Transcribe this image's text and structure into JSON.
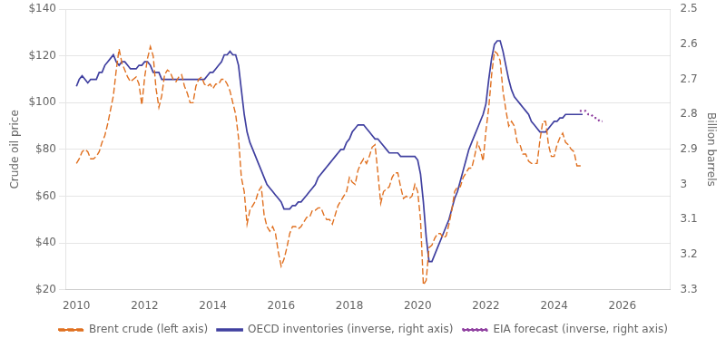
{
  "chart_data": {
    "type": "line",
    "ylabel": "Crude oil price",
    "y2label": "Billion barrels",
    "xlim": [
      2009.7,
      2027.4
    ],
    "xticks": [
      2010,
      2012,
      2014,
      2016,
      2018,
      2020,
      2022,
      2024,
      2026
    ],
    "ylim": [
      20,
      140
    ],
    "yticks": [
      {
        "value": 20,
        "label": "$20"
      },
      {
        "value": 40,
        "label": "$40"
      },
      {
        "value": 60,
        "label": "$60"
      },
      {
        "value": 80,
        "label": "$80"
      },
      {
        "value": 100,
        "label": "$100"
      },
      {
        "value": 120,
        "label": "$120"
      },
      {
        "value": 140,
        "label": "$140"
      }
    ],
    "y2lim": [
      3.3,
      2.5
    ],
    "y2ticks": [
      2.5,
      2.6,
      2.7,
      2.8,
      2.9,
      3,
      3.1,
      3.2,
      3.3
    ],
    "grid": "y",
    "legend": "bottom",
    "series": [
      {
        "name": "Brent crude (left axis)",
        "color": "#E07020",
        "line_style": "dashed",
        "x": [
          2010.0,
          2010.083,
          2010.167,
          2010.25,
          2010.333,
          2010.417,
          2010.5,
          2010.583,
          2010.667,
          2010.75,
          2010.833,
          2010.917,
          2011.0,
          2011.083,
          2011.167,
          2011.25,
          2011.333,
          2011.417,
          2011.5,
          2011.583,
          2011.667,
          2011.75,
          2011.833,
          2011.917,
          2012.0,
          2012.083,
          2012.167,
          2012.25,
          2012.333,
          2012.417,
          2012.5,
          2012.583,
          2012.667,
          2012.75,
          2012.833,
          2012.917,
          2013.0,
          2013.083,
          2013.167,
          2013.25,
          2013.333,
          2013.417,
          2013.5,
          2013.583,
          2013.667,
          2013.75,
          2013.833,
          2013.917,
          2014.0,
          2014.083,
          2014.167,
          2014.25,
          2014.333,
          2014.417,
          2014.5,
          2014.583,
          2014.667,
          2014.75,
          2014.833,
          2014.917,
          2015.0,
          2015.083,
          2015.167,
          2015.25,
          2015.333,
          2015.417,
          2015.5,
          2015.583,
          2015.667,
          2015.75,
          2015.833,
          2015.917,
          2016.0,
          2016.083,
          2016.167,
          2016.25,
          2016.333,
          2016.417,
          2016.5,
          2016.583,
          2016.667,
          2016.75,
          2016.833,
          2016.917,
          2017.0,
          2017.083,
          2017.167,
          2017.25,
          2017.333,
          2017.417,
          2017.5,
          2017.583,
          2017.667,
          2017.75,
          2017.833,
          2017.917,
          2018.0,
          2018.083,
          2018.167,
          2018.25,
          2018.333,
          2018.417,
          2018.5,
          2018.583,
          2018.667,
          2018.75,
          2018.833,
          2018.917,
          2019.0,
          2019.083,
          2019.167,
          2019.25,
          2019.333,
          2019.417,
          2019.5,
          2019.583,
          2019.667,
          2019.75,
          2019.833,
          2019.917,
          2020.0,
          2020.083,
          2020.167,
          2020.25,
          2020.333,
          2020.417,
          2020.5,
          2020.583,
          2020.667,
          2020.75,
          2020.833,
          2020.917,
          2021.0,
          2021.083,
          2021.167,
          2021.25,
          2021.333,
          2021.417,
          2021.5,
          2021.583,
          2021.667,
          2021.75,
          2021.833,
          2021.917,
          2022.0,
          2022.083,
          2022.167,
          2022.25,
          2022.333,
          2022.417,
          2022.5,
          2022.583,
          2022.667,
          2022.75,
          2022.833,
          2022.917,
          2023.0,
          2023.083,
          2023.167,
          2023.25,
          2023.333,
          2023.417,
          2023.5,
          2023.583,
          2023.667,
          2023.75,
          2023.833,
          2023.917,
          2024.0,
          2024.083,
          2024.167,
          2024.25,
          2024.333,
          2024.417,
          2024.5,
          2024.583,
          2024.667,
          2024.75,
          2024.833
        ],
        "values": [
          74,
          76,
          79,
          80,
          79,
          76,
          76,
          77,
          79,
          83,
          86,
          91,
          97,
          103,
          114,
          123,
          117,
          114,
          111,
          109,
          110,
          111,
          108,
          99,
          111,
          119,
          124,
          120,
          106,
          98,
          103,
          112,
          114,
          113,
          110,
          109,
          111,
          112,
          107,
          104,
          100,
          100,
          107,
          110,
          111,
          108,
          107,
          108,
          106,
          108,
          108,
          110,
          110,
          108,
          105,
          100,
          95,
          85,
          68,
          62,
          48,
          54,
          56,
          58,
          62,
          64,
          52,
          47,
          45,
          47,
          44,
          36,
          30,
          33,
          38,
          44,
          47,
          47,
          46,
          47,
          49,
          51,
          51,
          54,
          54,
          55,
          55,
          52,
          50,
          50,
          48,
          52,
          56,
          58,
          60,
          62,
          68,
          66,
          65,
          71,
          74,
          76,
          74,
          77,
          81,
          82,
          70,
          57,
          62,
          63,
          64,
          68,
          70,
          70,
          64,
          59,
          60,
          59,
          60,
          65,
          62,
          50,
          22,
          24,
          38,
          39,
          42,
          44,
          44,
          42,
          43,
          48,
          54,
          62,
          64,
          64,
          68,
          70,
          72,
          72,
          77,
          83,
          80,
          75,
          88,
          98,
          112,
          122,
          121,
          118,
          105,
          97,
          90,
          92,
          90,
          83,
          82,
          78,
          78,
          75,
          74,
          74,
          74,
          84,
          92,
          92,
          82,
          77,
          77,
          82,
          85,
          87,
          83,
          82,
          80,
          79,
          73,
          73,
          73
        ]
      },
      {
        "name": "OECD inventories (inverse, right axis)",
        "color": "#4040A0",
        "line_style": "solid",
        "axis": "y2",
        "x": [
          2010.0,
          2010.083,
          2010.167,
          2010.25,
          2010.333,
          2010.417,
          2010.5,
          2010.583,
          2010.667,
          2010.75,
          2010.833,
          2010.917,
          2011.0,
          2011.083,
          2011.167,
          2011.25,
          2011.333,
          2011.417,
          2011.5,
          2011.583,
          2011.667,
          2011.75,
          2011.833,
          2011.917,
          2012.0,
          2012.083,
          2012.167,
          2012.25,
          2012.333,
          2012.417,
          2012.5,
          2012.583,
          2012.667,
          2012.75,
          2012.833,
          2012.917,
          2013.0,
          2013.083,
          2013.167,
          2013.25,
          2013.333,
          2013.417,
          2013.5,
          2013.583,
          2013.667,
          2013.75,
          2013.833,
          2013.917,
          2014.0,
          2014.083,
          2014.167,
          2014.25,
          2014.333,
          2014.417,
          2014.5,
          2014.583,
          2014.667,
          2014.75,
          2014.833,
          2014.917,
          2015.0,
          2015.083,
          2015.167,
          2015.25,
          2015.333,
          2015.417,
          2015.5,
          2015.583,
          2015.667,
          2015.75,
          2015.833,
          2015.917,
          2016.0,
          2016.083,
          2016.167,
          2016.25,
          2016.333,
          2016.417,
          2016.5,
          2016.583,
          2016.667,
          2016.75,
          2016.833,
          2016.917,
          2017.0,
          2017.083,
          2017.167,
          2017.25,
          2017.333,
          2017.417,
          2017.5,
          2017.583,
          2017.667,
          2017.75,
          2017.833,
          2017.917,
          2018.0,
          2018.083,
          2018.167,
          2018.25,
          2018.333,
          2018.417,
          2018.5,
          2018.583,
          2018.667,
          2018.75,
          2018.833,
          2018.917,
          2019.0,
          2019.083,
          2019.167,
          2019.25,
          2019.333,
          2019.417,
          2019.5,
          2019.583,
          2019.667,
          2019.75,
          2019.833,
          2019.917,
          2020.0,
          2020.083,
          2020.167,
          2020.25,
          2020.333,
          2020.417,
          2020.5,
          2020.583,
          2020.667,
          2020.75,
          2020.833,
          2020.917,
          2021.0,
          2021.083,
          2021.167,
          2021.25,
          2021.333,
          2021.417,
          2021.5,
          2021.583,
          2021.667,
          2021.75,
          2021.833,
          2021.917,
          2022.0,
          2022.083,
          2022.167,
          2022.25,
          2022.333,
          2022.417,
          2022.5,
          2022.583,
          2022.667,
          2022.75,
          2022.833,
          2022.917,
          2023.0,
          2023.083,
          2023.167,
          2023.25,
          2023.333,
          2023.417,
          2023.5,
          2023.583,
          2023.667,
          2023.75,
          2023.833,
          2023.917,
          2024.0,
          2024.083,
          2024.167,
          2024.25,
          2024.333,
          2024.417,
          2024.5,
          2024.583,
          2024.667,
          2024.75,
          2024.833
        ],
        "values": [
          2.72,
          2.7,
          2.69,
          2.7,
          2.71,
          2.7,
          2.7,
          2.7,
          2.68,
          2.68,
          2.66,
          2.65,
          2.64,
          2.63,
          2.65,
          2.66,
          2.65,
          2.65,
          2.66,
          2.67,
          2.67,
          2.67,
          2.66,
          2.66,
          2.65,
          2.65,
          2.66,
          2.68,
          2.68,
          2.68,
          2.7,
          2.7,
          2.7,
          2.7,
          2.7,
          2.7,
          2.7,
          2.7,
          2.7,
          2.7,
          2.7,
          2.7,
          2.7,
          2.7,
          2.7,
          2.7,
          2.69,
          2.68,
          2.68,
          2.67,
          2.66,
          2.65,
          2.63,
          2.63,
          2.62,
          2.63,
          2.63,
          2.66,
          2.73,
          2.8,
          2.85,
          2.88,
          2.9,
          2.92,
          2.94,
          2.96,
          2.98,
          3.0,
          3.01,
          3.02,
          3.03,
          3.04,
          3.05,
          3.07,
          3.07,
          3.07,
          3.06,
          3.06,
          3.05,
          3.05,
          3.04,
          3.03,
          3.02,
          3.01,
          3.0,
          2.98,
          2.97,
          2.96,
          2.95,
          2.94,
          2.93,
          2.92,
          2.91,
          2.9,
          2.9,
          2.88,
          2.87,
          2.85,
          2.84,
          2.83,
          2.83,
          2.83,
          2.84,
          2.85,
          2.86,
          2.87,
          2.87,
          2.88,
          2.89,
          2.9,
          2.91,
          2.91,
          2.91,
          2.91,
          2.92,
          2.92,
          2.92,
          2.92,
          2.92,
          2.92,
          2.93,
          2.97,
          3.05,
          3.15,
          3.22,
          3.22,
          3.2,
          3.18,
          3.16,
          3.14,
          3.12,
          3.1,
          3.07,
          3.04,
          3.02,
          2.99,
          2.96,
          2.93,
          2.9,
          2.88,
          2.86,
          2.84,
          2.82,
          2.8,
          2.77,
          2.7,
          2.64,
          2.6,
          2.59,
          2.59,
          2.62,
          2.66,
          2.7,
          2.73,
          2.75,
          2.76,
          2.77,
          2.78,
          2.79,
          2.8,
          2.82,
          2.83,
          2.84,
          2.85,
          2.85,
          2.85,
          2.84,
          2.83,
          2.82,
          2.82,
          2.81,
          2.81,
          2.8,
          2.8,
          2.8,
          2.8,
          2.8,
          2.8,
          2.8
        ]
      },
      {
        "name": "EIA forecast (inverse, right axis)",
        "color": "#9040A0",
        "line_style": "dotted",
        "axis": "y2",
        "x": [
          2024.75,
          2024.833,
          2024.917,
          2025.0,
          2025.083,
          2025.167,
          2025.25,
          2025.333,
          2025.417
        ],
        "values": [
          2.79,
          2.79,
          2.79,
          2.8,
          2.8,
          2.81,
          2.81,
          2.82,
          2.82
        ]
      }
    ]
  }
}
